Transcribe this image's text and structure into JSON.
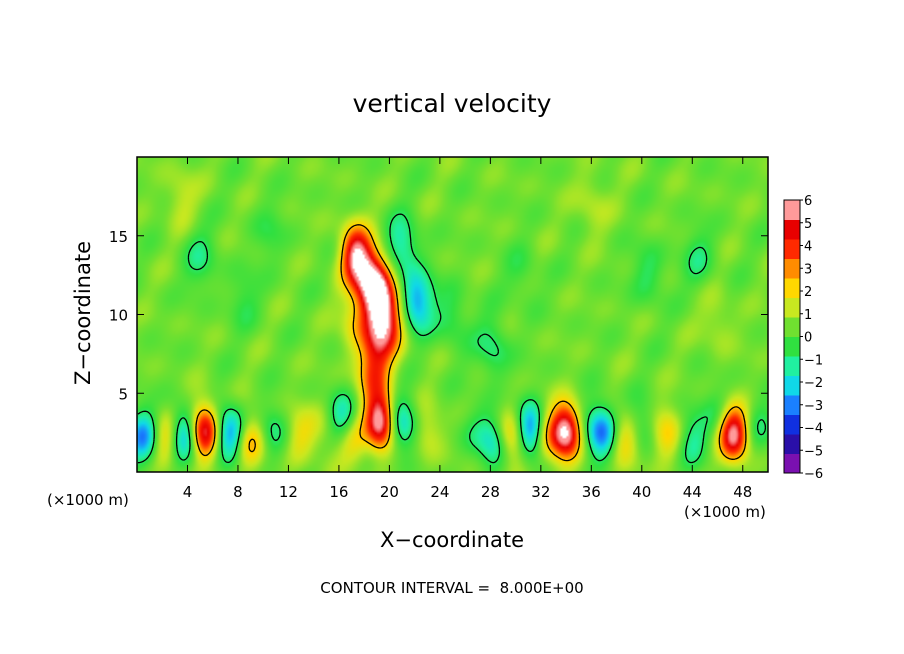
{
  "chart_data": {
    "type": "heatmap",
    "title": "vertical velocity",
    "xlabel": "X−coordinate",
    "ylabel": "Z−coordinate",
    "x_units": "(×1000 m)",
    "y_units": "(×1000 m)",
    "xlim": [
      0,
      50
    ],
    "ylim": [
      0,
      20
    ],
    "x_ticks": [
      "4",
      "8",
      "12",
      "16",
      "20",
      "24",
      "28",
      "32",
      "36",
      "40",
      "44",
      "48"
    ],
    "y_ticks": [
      "5",
      "10",
      "15"
    ],
    "colorbar": {
      "labels": [
        "6",
        "5",
        "4",
        "3",
        "2",
        "1",
        "0",
        "−1",
        "−2",
        "−3",
        "−4",
        "−5",
        "−6"
      ],
      "range": [
        -6,
        6
      ],
      "colors": [
        "#7a10b0",
        "#2a0fa8",
        "#1030e0",
        "#1a80ff",
        "#10d8e8",
        "#20f0a0",
        "#30e040",
        "#70e030",
        "#c8e820",
        "#ffd800",
        "#ff8c00",
        "#ff2a00",
        "#e80000",
        "#ff9a9a"
      ]
    },
    "background_level": 0.4,
    "features": [
      {
        "x": 0.6,
        "z": 2.2,
        "w": -3.6
      },
      {
        "x": 2.4,
        "z": 2.2,
        "w": 3.2
      },
      {
        "x": 5.3,
        "z": 2.6,
        "w": 5.8
      },
      {
        "x": 3.6,
        "z": 2.4,
        "w": -4.2
      },
      {
        "x": 7.5,
        "z": 2.4,
        "w": -4.4
      },
      {
        "x": 8.8,
        "z": 2.0,
        "w": 3.4
      },
      {
        "x": 10.8,
        "z": 2.5,
        "w": -1.6
      },
      {
        "x": 13.0,
        "z": 2.4,
        "w": 1.6
      },
      {
        "x": 15.2,
        "z": 2.8,
        "w": 1.2
      },
      {
        "x": 16.3,
        "z": 3.2,
        "w": -3.4
      },
      {
        "x": 17.0,
        "z": 2.2,
        "w": 2.4
      },
      {
        "x": 19.3,
        "z": 3.2,
        "w": 6.5
      },
      {
        "x": 21.0,
        "z": 3.0,
        "w": -3.0
      },
      {
        "x": 23.0,
        "z": 2.6,
        "w": 1.4
      },
      {
        "x": 26.8,
        "z": 2.6,
        "w": -0.9
      },
      {
        "x": 28.5,
        "z": 2.0,
        "w": -3.2
      },
      {
        "x": 29.5,
        "z": 2.2,
        "w": 3.6
      },
      {
        "x": 31.2,
        "z": 2.6,
        "w": -4.6
      },
      {
        "x": 34.0,
        "z": 2.6,
        "w": 6.2
      },
      {
        "x": 32.5,
        "z": 2.2,
        "w": 2.2
      },
      {
        "x": 36.8,
        "z": 2.6,
        "w": -4.2
      },
      {
        "x": 38.6,
        "z": 2.2,
        "w": 2.6
      },
      {
        "x": 40.0,
        "z": 2.8,
        "w": -1.6
      },
      {
        "x": 42.0,
        "z": 2.4,
        "w": 2.2
      },
      {
        "x": 44.0,
        "z": 2.0,
        "w": -1.8
      },
      {
        "x": 47.3,
        "z": 2.4,
        "w": 6.0
      },
      {
        "x": 46.0,
        "z": 3.8,
        "w": -1.0
      },
      {
        "x": 49.5,
        "z": 2.6,
        "w": -1.2
      },
      {
        "x": 18.7,
        "z": 6.2,
        "w": 3.0
      },
      {
        "x": 19.2,
        "z": 8.5,
        "w": 3.2
      },
      {
        "x": 19.3,
        "z": 10.8,
        "w": 3.4
      },
      {
        "x": 18.8,
        "z": 12.0,
        "w": 3.1
      },
      {
        "x": 17.3,
        "z": 13.8,
        "w": 4.9
      },
      {
        "x": 18.4,
        "z": 12.5,
        "w": 2.8
      },
      {
        "x": 20.1,
        "z": 9.5,
        "w": 2.4
      },
      {
        "x": 17.4,
        "z": 9.5,
        "w": 1.6
      },
      {
        "x": 22.2,
        "z": 10.8,
        "w": -3.4
      },
      {
        "x": 21.0,
        "z": 14.3,
        "w": -2.2
      },
      {
        "x": 25.0,
        "z": 9.8,
        "w": -1.2
      },
      {
        "x": 28.2,
        "z": 7.8,
        "w": -1.5
      },
      {
        "x": 30.5,
        "z": 12.5,
        "w": -0.8
      },
      {
        "x": 5.0,
        "z": 13.5,
        "w": -1.3
      },
      {
        "x": 10.5,
        "z": 15.2,
        "w": -0.8
      },
      {
        "x": 40.5,
        "z": 12.6,
        "w": -1.2
      },
      {
        "x": 44.5,
        "z": 13.6,
        "w": -1.2
      },
      {
        "x": 3.5,
        "z": 17.5,
        "w": 1.0
      },
      {
        "x": 36.0,
        "z": 17.0,
        "w": 0.9
      },
      {
        "x": 8.5,
        "z": 11.0,
        "w": -0.9
      },
      {
        "x": 46.0,
        "z": 9.5,
        "w": 0.8
      }
    ],
    "contour_line_levels": [
      -0.8,
      2.5
    ]
  },
  "footer_text": "CONTOUR INTERVAL =  8.000E+00"
}
